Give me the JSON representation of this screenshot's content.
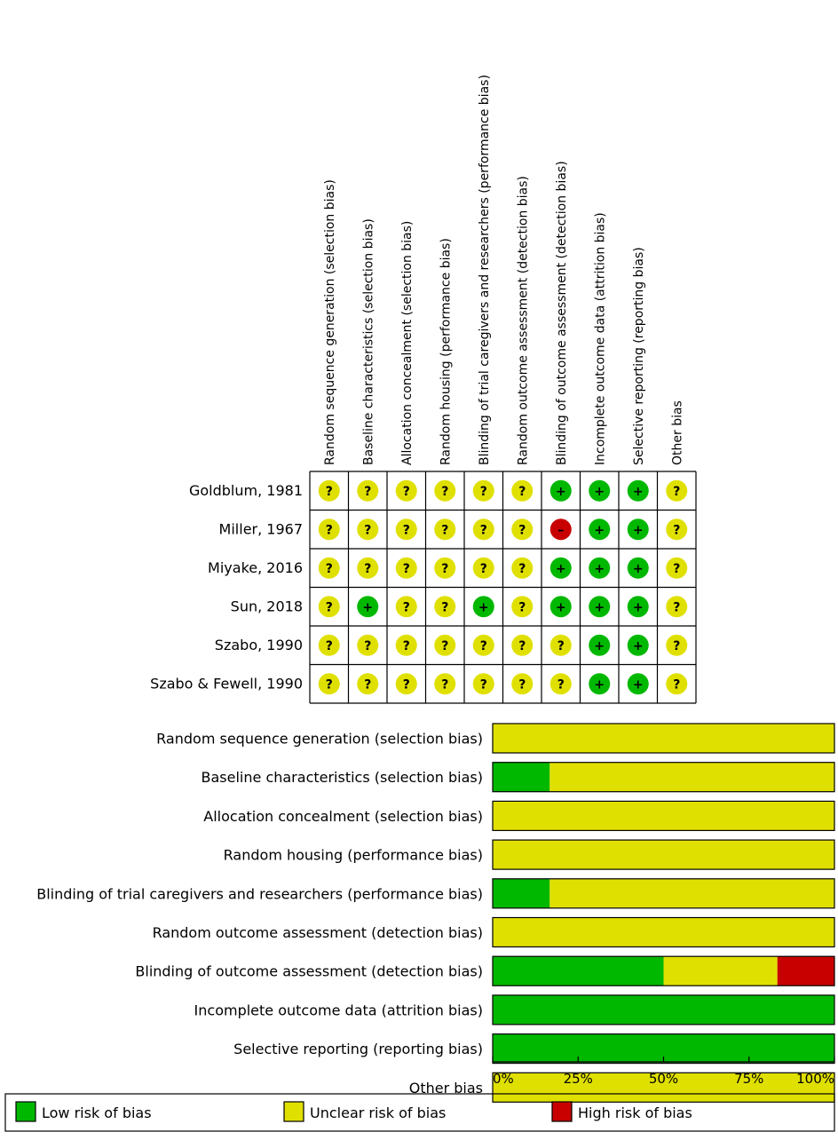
{
  "colors": {
    "low": "#00b800",
    "unclear": "#e0e000",
    "high": "#c80000"
  },
  "symbols": {
    "low": "+",
    "unclear": "?",
    "high": "–"
  },
  "chart_data": [
    {
      "type": "table",
      "columns": [
        "Random sequence generation (selection bias)",
        "Baseline characteristics (selection bias)",
        "Allocation concealment (selection bias)",
        "Random housing (performance bias)",
        "Blinding of trial caregivers and researchers (performance bias)",
        "Random outcome assessment (detection bias)",
        "Blinding of outcome assessment (detection bias)",
        "Incomplete outcome data (attrition bias)",
        "Selective reporting (reporting bias)",
        "Other bias"
      ],
      "rows": [
        {
          "study": "Goldblum, 1981",
          "ratings": [
            "unclear",
            "unclear",
            "unclear",
            "unclear",
            "unclear",
            "unclear",
            "low",
            "low",
            "low",
            "unclear"
          ]
        },
        {
          "study": "Miller, 1967",
          "ratings": [
            "unclear",
            "unclear",
            "unclear",
            "unclear",
            "unclear",
            "unclear",
            "high",
            "low",
            "low",
            "unclear"
          ]
        },
        {
          "study": "Miyake, 2016",
          "ratings": [
            "unclear",
            "unclear",
            "unclear",
            "unclear",
            "unclear",
            "unclear",
            "low",
            "low",
            "low",
            "unclear"
          ]
        },
        {
          "study": "Sun, 2018",
          "ratings": [
            "unclear",
            "low",
            "unclear",
            "unclear",
            "low",
            "unclear",
            "low",
            "low",
            "low",
            "unclear"
          ]
        },
        {
          "study": "Szabo, 1990",
          "ratings": [
            "unclear",
            "unclear",
            "unclear",
            "unclear",
            "unclear",
            "unclear",
            "unclear",
            "low",
            "low",
            "unclear"
          ]
        },
        {
          "study": "Szabo & Fewell, 1990",
          "ratings": [
            "unclear",
            "unclear",
            "unclear",
            "unclear",
            "unclear",
            "unclear",
            "unclear",
            "low",
            "low",
            "unclear"
          ]
        }
      ]
    },
    {
      "type": "bar",
      "orientation": "horizontal",
      "stacked": true,
      "categories": [
        "Random sequence generation (selection bias)",
        "Baseline characteristics (selection bias)",
        "Allocation concealment (selection bias)",
        "Random housing (performance bias)",
        "Blinding of trial caregivers and researchers (performance bias)",
        "Random outcome assessment (detection bias)",
        "Blinding of outcome assessment (detection bias)",
        "Incomplete outcome data (attrition bias)",
        "Selective reporting (reporting bias)",
        "Other bias"
      ],
      "series": [
        {
          "name": "Low risk of bias",
          "key": "low",
          "values": [
            0,
            16.7,
            0,
            0,
            16.7,
            0,
            50,
            100,
            100,
            0
          ]
        },
        {
          "name": "Unclear risk of bias",
          "key": "unclear",
          "values": [
            100,
            83.3,
            100,
            100,
            83.3,
            100,
            33.3,
            0,
            0,
            100
          ]
        },
        {
          "name": "High risk of bias",
          "key": "high",
          "values": [
            0,
            0,
            0,
            0,
            0,
            0,
            16.7,
            0,
            0,
            0
          ]
        }
      ],
      "xlim": [
        0,
        100
      ],
      "xticks": [
        0,
        25,
        50,
        75,
        100
      ],
      "xtick_labels": [
        "0%",
        "25%",
        "50%",
        "75%",
        "100%"
      ],
      "legend_position": "bottom"
    }
  ]
}
